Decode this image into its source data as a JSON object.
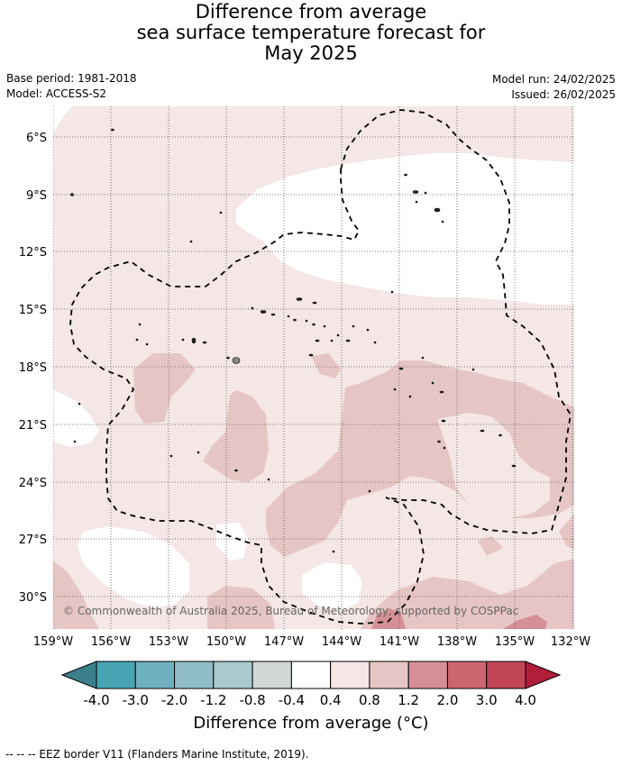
{
  "title": {
    "line1": "Difference from average",
    "line2": "sea surface temperature forecast for",
    "line3": "May 2025"
  },
  "meta": {
    "base_period": "Base period: 1981-2018",
    "model": "Model: ACCESS-S2",
    "model_run": "Model run: 24/02/2025",
    "issued": "Issued: 26/02/2025"
  },
  "map": {
    "lon_ticks": [
      "159°W",
      "156°W",
      "153°W",
      "150°W",
      "147°W",
      "144°W",
      "141°W",
      "138°W",
      "135°W",
      "132°W"
    ],
    "lat_ticks": [
      "6°S",
      "9°S",
      "12°S",
      "15°S",
      "18°S",
      "21°S",
      "24°S",
      "27°S",
      "30°S"
    ],
    "copyright": "© Commonwealth of Australia 2025, Bureau of Meteorology, supported by COSPPac"
  },
  "colorbar": {
    "ticks": [
      "-4.0",
      "-3.0",
      "-2.0",
      "-1.2",
      "-0.8",
      "-0.4",
      "0.4",
      "0.8",
      "1.2",
      "2.0",
      "3.0",
      "4.0"
    ],
    "colors": [
      "#3b7f8c",
      "#47a4b3",
      "#6fb0bf",
      "#8fbcc6",
      "#a9c9cd",
      "#d2d6d7",
      "#ffffff",
      "#f4e7e6",
      "#e6c6c4",
      "#d68f96",
      "#cb6570",
      "#c24656",
      "#b01e3a"
    ],
    "label": "Difference from average (°C)"
  },
  "legend_note": "--  --  -- EEZ border V11 (Flanders Marine Institute, 2019)."
}
